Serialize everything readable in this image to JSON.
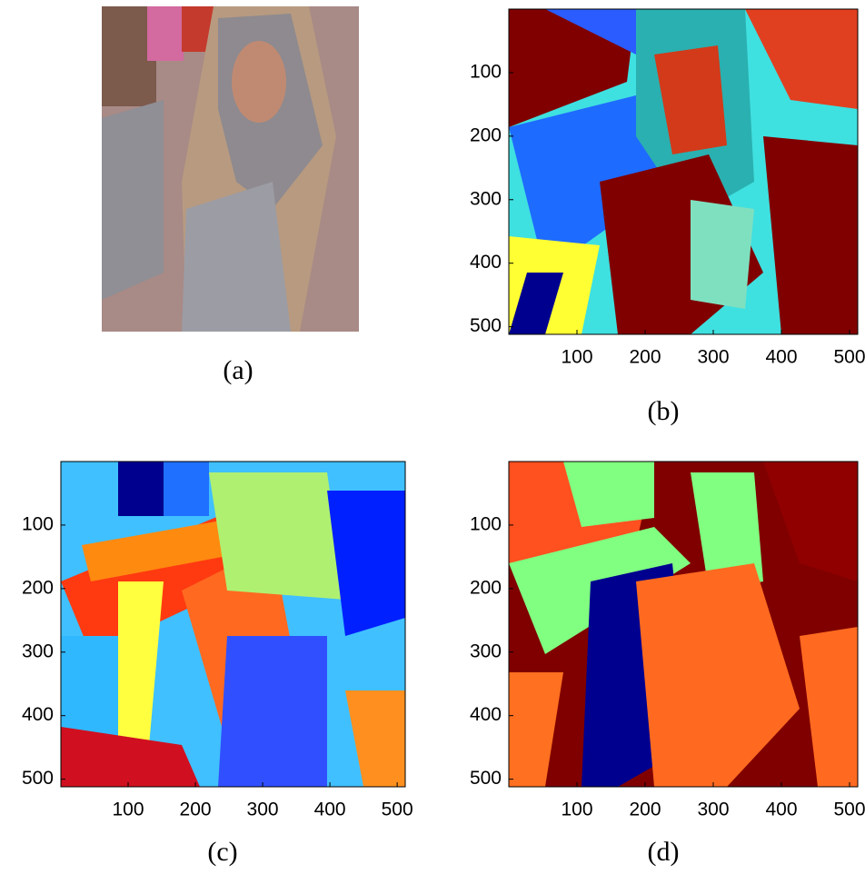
{
  "panels": [
    {
      "label": "(a)"
    },
    {
      "label": "(b)",
      "xlim": [
        0,
        512
      ],
      "ylim": [
        0,
        512
      ],
      "xticks": [
        100,
        200,
        300,
        400,
        500
      ],
      "yticks": [
        100,
        200,
        300,
        400,
        500
      ]
    },
    {
      "label": "(c)",
      "xlim": [
        0,
        512
      ],
      "ylim": [
        0,
        512
      ],
      "xticks": [
        100,
        200,
        300,
        400,
        500
      ],
      "yticks": [
        100,
        200,
        300,
        400,
        500
      ]
    },
    {
      "label": "(d)",
      "xlim": [
        0,
        512
      ],
      "ylim": [
        0,
        512
      ],
      "xticks": [
        100,
        200,
        300,
        400,
        500
      ],
      "yticks": [
        100,
        200,
        300,
        400,
        500
      ]
    }
  ]
}
